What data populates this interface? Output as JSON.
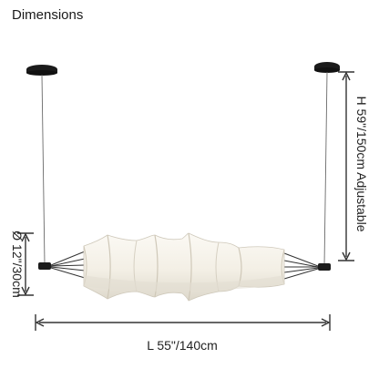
{
  "title": "Dimensions",
  "dimensions": {
    "height_label": "H 59\"/150cm Adjustable",
    "diameter_label": "Ø 12\"/30cm",
    "length_label": "L 55\"/140cm"
  },
  "colors": {
    "fixture_metal": "#1b1b1b",
    "shade_fabric": "#f7f4ec",
    "shade_shadow": "#ddd8cc",
    "arrow": "#333333"
  }
}
